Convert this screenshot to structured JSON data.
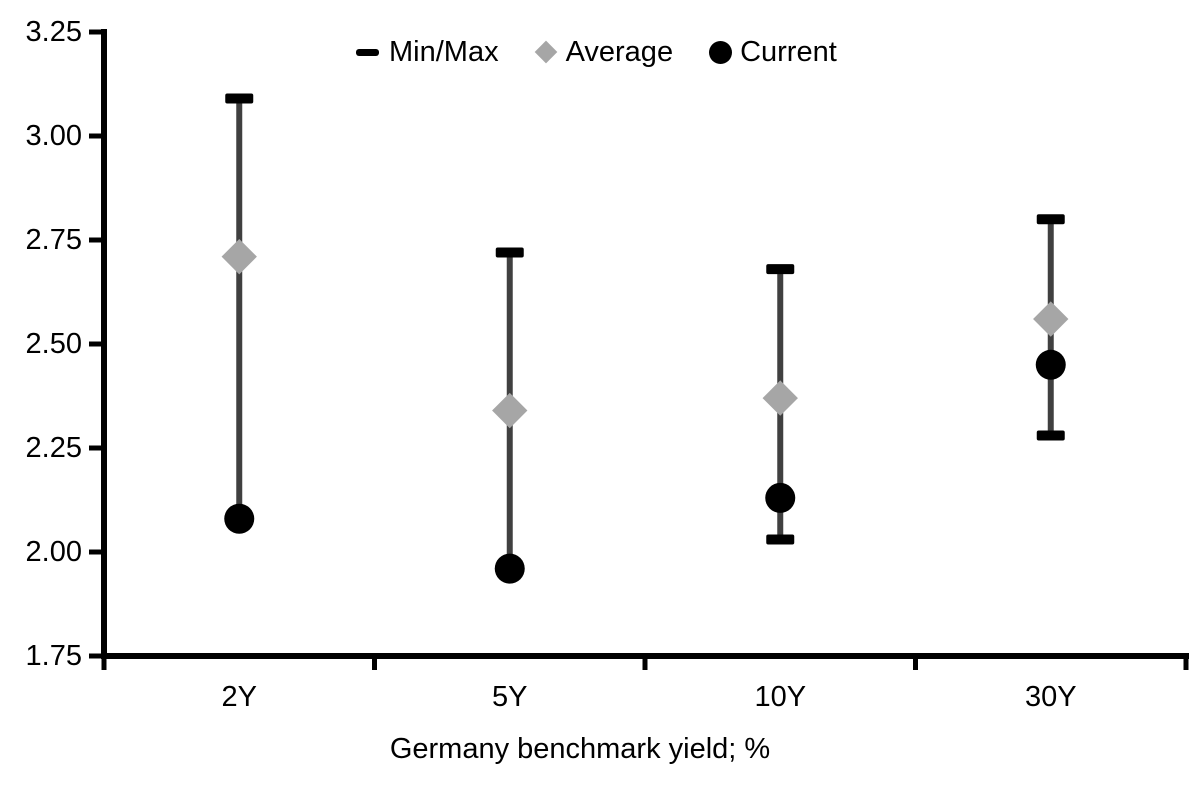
{
  "chart_data": {
    "type": "scatter",
    "subtype": "min-max-range-with-markers",
    "title": "",
    "xlabel": "Germany benchmark yield; %",
    "ylabel": "",
    "categories": [
      "2Y",
      "5Y",
      "10Y",
      "30Y"
    ],
    "series": [
      {
        "name": "Min/Max",
        "marker": "dash",
        "role": "range",
        "min": [
          2.08,
          1.96,
          2.03,
          2.28
        ],
        "max": [
          3.09,
          2.72,
          2.68,
          2.8
        ]
      },
      {
        "name": "Average",
        "marker": "diamond",
        "role": "point",
        "values": [
          2.71,
          2.34,
          2.37,
          2.56
        ]
      },
      {
        "name": "Current",
        "marker": "circle",
        "role": "point",
        "values": [
          2.08,
          1.96,
          2.13,
          2.45
        ]
      }
    ],
    "ylim": [
      1.75,
      3.25
    ],
    "ytick_step": 0.25,
    "y_ticks": [
      "3.25",
      "3.00",
      "2.75",
      "2.50",
      "2.25",
      "2.00",
      "1.75"
    ],
    "grid": false,
    "legend_position": "top-center",
    "colors": {
      "minmax": "#000000",
      "average": "#a6a6a6",
      "current": "#000000",
      "whisker": "#404040",
      "axis": "#000000",
      "text": "#000000",
      "background": "#ffffff"
    }
  }
}
